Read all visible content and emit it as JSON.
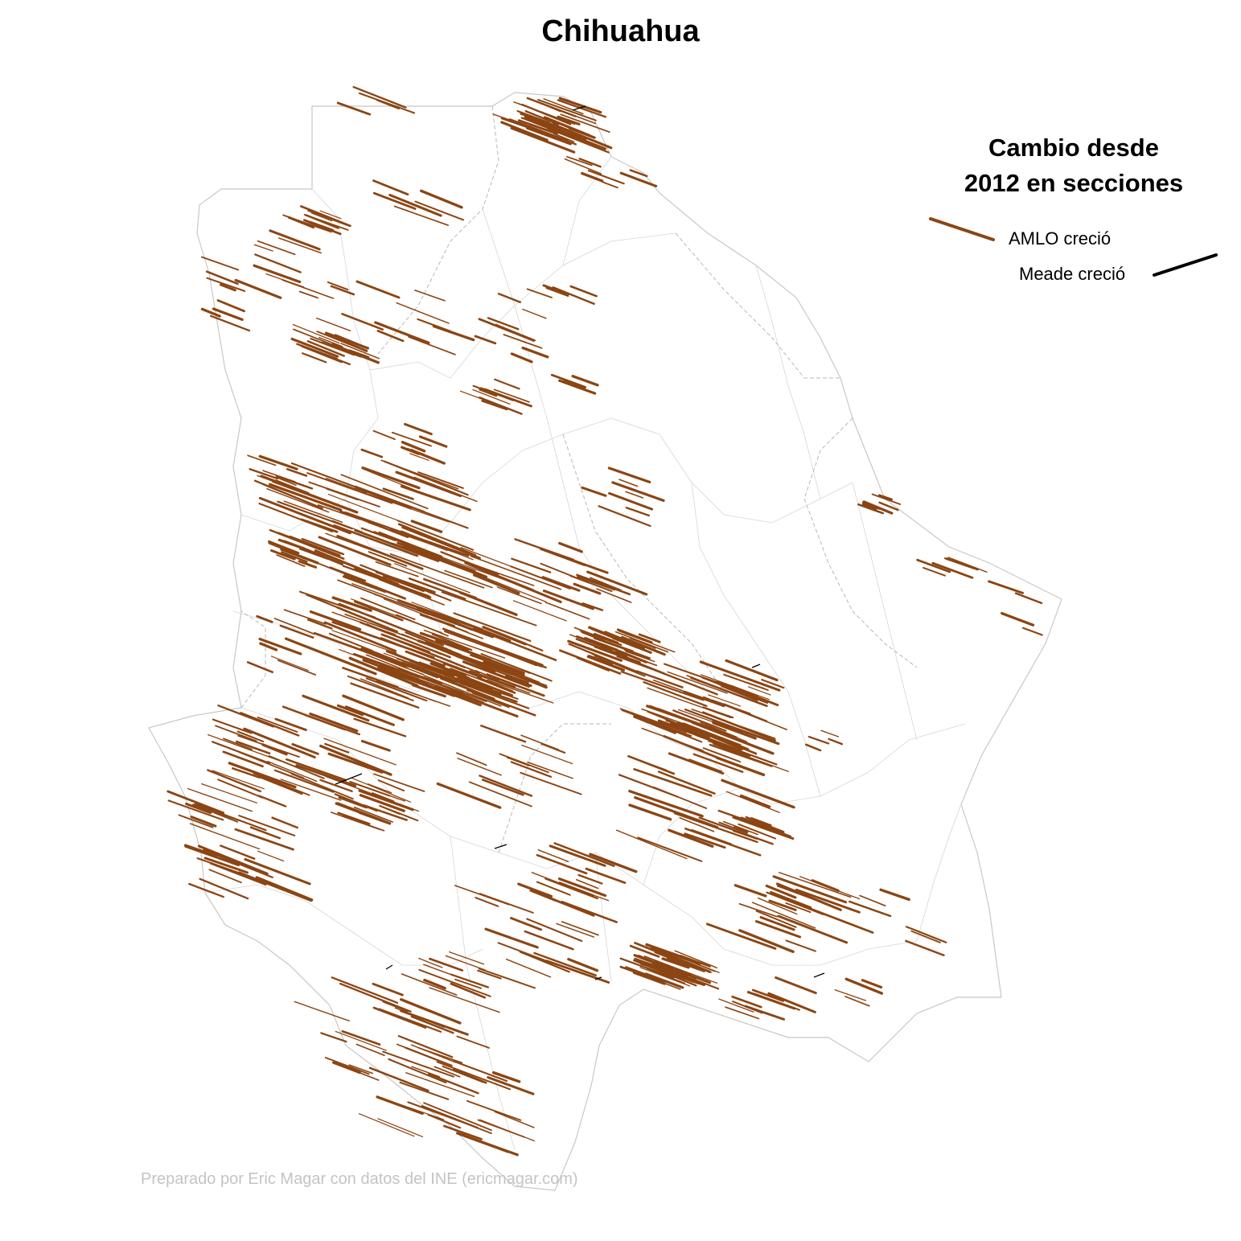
{
  "title": "Chihuahua",
  "legend": {
    "title_line1": "Cambio desde",
    "title_line2": "2012 en secciones",
    "items": [
      {
        "label": "AMLO creció",
        "color": "#8B4513"
      },
      {
        "label": "Meade creció",
        "color": "#000000"
      }
    ]
  },
  "credit": "Preparado por Eric Magar con datos del INE (ericmagar.com)",
  "colors": {
    "amlo": "#8B4513",
    "meade": "#000000",
    "boundary": "#c8c8c8"
  }
}
